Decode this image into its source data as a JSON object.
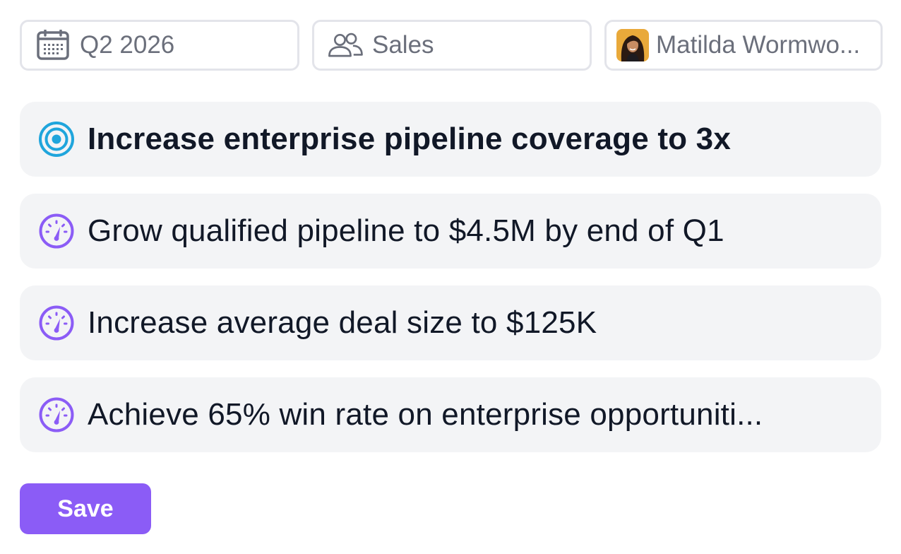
{
  "filters": {
    "period": {
      "label": "Q2 2026",
      "icon": "calendar-icon"
    },
    "team": {
      "label": "Sales",
      "icon": "users-icon"
    },
    "owner": {
      "label": "Matilda Wormwo...",
      "icon": "avatar"
    }
  },
  "goals": [
    {
      "text": "Increase enterprise pipeline coverage to 3x",
      "icon": "target-icon",
      "kind": "objective"
    },
    {
      "text": "Grow qualified pipeline to $4.5M by end of Q1",
      "icon": "gauge-icon",
      "kind": "key-result"
    },
    {
      "text": "Increase average deal size to $125K",
      "icon": "gauge-icon",
      "kind": "key-result"
    },
    {
      "text": "Achieve 65% win rate on enterprise opportuniti...",
      "icon": "gauge-icon",
      "kind": "key-result"
    }
  ],
  "actions": {
    "save_label": "Save"
  },
  "colors": {
    "accent": "#8b5cf6",
    "objective_icon": "#1fa5dc",
    "key_result_icon": "#8b5cf6",
    "row_background": "#f3f4f6",
    "filter_border": "#e3e4ea"
  }
}
